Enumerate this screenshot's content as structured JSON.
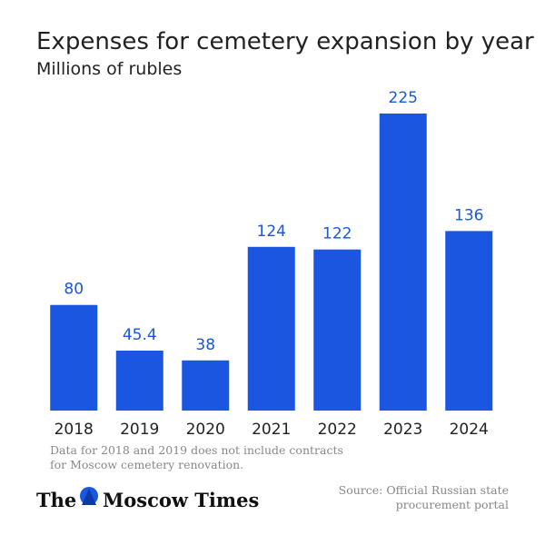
{
  "chart_data": {
    "type": "bar",
    "title": "Expenses for cemetery expansion by year",
    "subtitle": "Millions of rubles",
    "categories": [
      "2018",
      "2019",
      "2020",
      "2021",
      "2022",
      "2023",
      "2024"
    ],
    "values": [
      80,
      45.4,
      38,
      124,
      122,
      225,
      136
    ],
    "color": "#1a56e0",
    "note": [
      "Data for 2018 and 2019 does not include contracts",
      "for Moscow cemetery renovation."
    ],
    "source": [
      "Source: Official Russian state",
      "procurement portal"
    ],
    "logo_left": "The",
    "logo_right": "Moscow Times"
  }
}
